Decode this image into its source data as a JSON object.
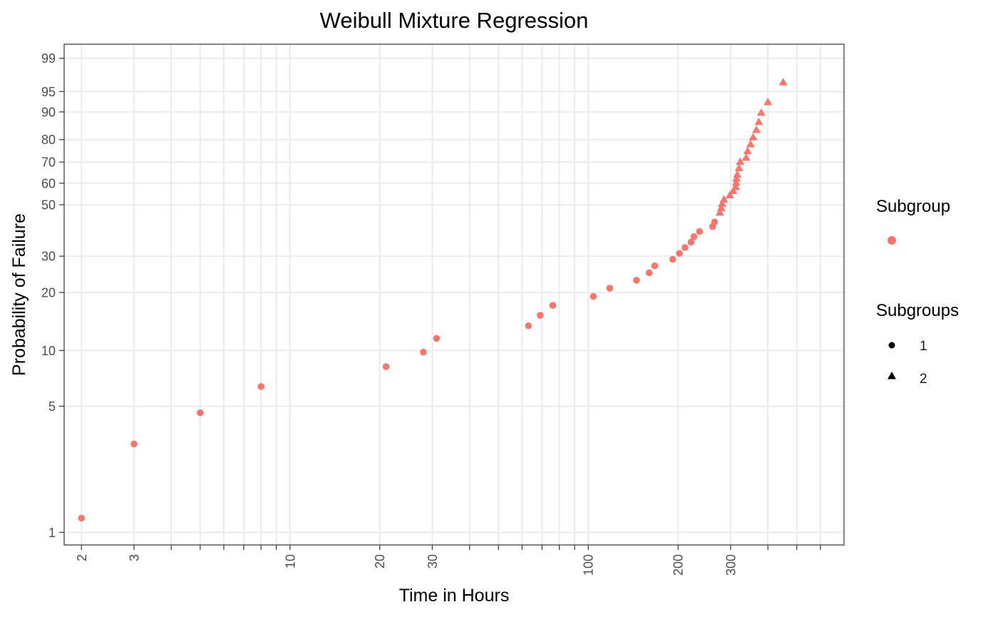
{
  "chart_data": {
    "type": "scatter",
    "title": "Weibull Mixture Regression",
    "xlabel": "Time in Hours",
    "ylabel": "Probability of Failure",
    "x_scale": "log",
    "y_scale": "weibull",
    "xlim": [
      1.75,
      720
    ],
    "ylim": [
      0.85,
      99.6
    ],
    "grid": true,
    "x_ticks": [
      {
        "value": 2,
        "label": "2"
      },
      {
        "value": 3,
        "label": "3"
      },
      {
        "value": 4,
        "label": ""
      },
      {
        "value": 5,
        "label": ""
      },
      {
        "value": 6,
        "label": ""
      },
      {
        "value": 7,
        "label": ""
      },
      {
        "value": 8,
        "label": ""
      },
      {
        "value": 9,
        "label": ""
      },
      {
        "value": 10,
        "label": "10"
      },
      {
        "value": 20,
        "label": "20"
      },
      {
        "value": 30,
        "label": "30"
      },
      {
        "value": 40,
        "label": ""
      },
      {
        "value": 50,
        "label": ""
      },
      {
        "value": 60,
        "label": ""
      },
      {
        "value": 70,
        "label": ""
      },
      {
        "value": 80,
        "label": ""
      },
      {
        "value": 90,
        "label": ""
      },
      {
        "value": 100,
        "label": "100"
      },
      {
        "value": 200,
        "label": "200"
      },
      {
        "value": 300,
        "label": "300"
      },
      {
        "value": 400,
        "label": ""
      },
      {
        "value": 500,
        "label": ""
      },
      {
        "value": 600,
        "label": ""
      }
    ],
    "y_ticks": [
      1,
      5,
      10,
      20,
      30,
      50,
      60,
      70,
      80,
      90,
      95,
      99
    ],
    "color": "#f8766d",
    "legend": {
      "placement": "right",
      "color_title": "Subgroup",
      "shape_title": "Subgroups",
      "shape_items": [
        {
          "label": "1",
          "shape": "circle"
        },
        {
          "label": "2",
          "shape": "triangle"
        }
      ]
    },
    "series": [
      {
        "name": "1",
        "shape": "circle",
        "points": [
          [
            2,
            1.2
          ],
          [
            3,
            3.1
          ],
          [
            5,
            4.6
          ],
          [
            8,
            6.4
          ],
          [
            21,
            8.2
          ],
          [
            28,
            9.8
          ],
          [
            31,
            11.6
          ],
          [
            63,
            13.5
          ],
          [
            69,
            15.3
          ],
          [
            76,
            17.2
          ],
          [
            104,
            19.1
          ],
          [
            118,
            21.0
          ],
          [
            145,
            23.0
          ],
          [
            160,
            25.0
          ],
          [
            167,
            27.0
          ],
          [
            192,
            29.0
          ],
          [
            202,
            30.9
          ],
          [
            211,
            32.9
          ],
          [
            221,
            34.8
          ],
          [
            226,
            36.8
          ],
          [
            236,
            38.8
          ],
          [
            261,
            40.7
          ],
          [
            265,
            42.6
          ]
        ]
      },
      {
        "name": "2",
        "shape": "triangle",
        "points": [
          [
            276,
            46.6
          ],
          [
            279,
            48.6
          ],
          [
            281,
            50.5
          ],
          [
            285,
            52.5
          ],
          [
            298,
            54.4
          ],
          [
            306,
            56.4
          ],
          [
            312,
            58.3
          ],
          [
            313,
            60.3
          ],
          [
            314,
            62.3
          ],
          [
            316,
            64.2
          ],
          [
            320,
            67.2
          ],
          [
            323,
            70.2
          ],
          [
            338,
            72.1
          ],
          [
            342,
            75.1
          ],
          [
            350,
            78.1
          ],
          [
            357,
            81.0
          ],
          [
            366,
            83.9
          ],
          [
            373,
            86.8
          ],
          [
            380,
            89.8
          ],
          [
            400,
            92.7
          ],
          [
            450,
            96.6
          ]
        ]
      }
    ]
  }
}
